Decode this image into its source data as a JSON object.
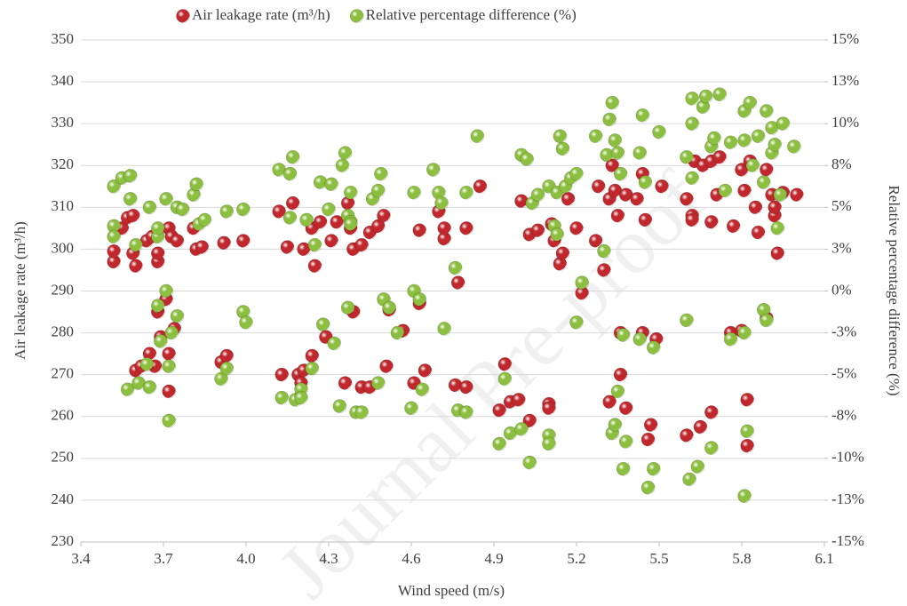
{
  "chart_data": {
    "type": "scatter",
    "watermark": "Journal Pre-proof",
    "x_label": "Wind speed (m/s)",
    "y_label": "Air leakage rate (m³/h)",
    "y2_label": "Relative percentage difference (%)",
    "xlim": [
      3.4,
      6.1
    ],
    "xticks": [
      3.4,
      3.7,
      {
        "value": 4,
        "label": "4.0"
      },
      4.3,
      4.6,
      4.9,
      5.2,
      5.5,
      5.8,
      6.1
    ],
    "ylim": [
      230,
      350
    ],
    "yticks": [
      230,
      240,
      250,
      260,
      270,
      280,
      290,
      300,
      310,
      320,
      330,
      340,
      350
    ],
    "y2lim": [
      -15,
      15
    ],
    "y2ticks": [
      {
        "value": -15,
        "label": "-15%"
      },
      {
        "value": -12.5,
        "label": "-13%"
      },
      {
        "value": -10,
        "label": "-10%"
      },
      {
        "value": -7.5,
        "label": "-8%"
      },
      {
        "value": -5,
        "label": "-5%"
      },
      {
        "value": -2.5,
        "label": "-3%"
      },
      {
        "value": 0,
        "label": "0%"
      },
      {
        "value": 2.5,
        "label": "3%"
      },
      {
        "value": 5,
        "label": "5%"
      },
      {
        "value": 7.5,
        "label": "8%"
      },
      {
        "value": 10,
        "label": "10%"
      },
      {
        "value": 12.5,
        "label": "13%"
      },
      {
        "value": 15,
        "label": "15%"
      }
    ],
    "legend": "top",
    "series": [
      {
        "name": "Air leakage rate (m³/h)",
        "color": "#c0282d",
        "x": [
          3.52,
          3.52,
          3.55,
          3.57,
          3.59,
          3.59,
          3.6,
          3.64,
          3.66,
          3.68,
          3.68,
          3.72,
          3.73,
          3.75,
          3.81,
          3.82,
          3.84,
          3.92,
          3.99,
          3.6,
          3.62,
          3.65,
          3.67,
          3.68,
          3.69,
          3.71,
          3.72,
          3.72,
          3.74,
          3.91,
          3.93,
          4.12,
          4.15,
          4.17,
          4.21,
          4.24,
          4.25,
          4.27,
          4.31,
          4.33,
          4.37,
          4.38,
          4.39,
          4.42,
          4.45,
          4.48,
          4.5,
          4.63,
          4.7,
          4.72,
          4.72,
          4.77,
          4.8,
          4.85,
          4.13,
          4.19,
          4.2,
          4.21,
          4.24,
          4.29,
          4.36,
          4.39,
          4.42,
          4.45,
          4.51,
          4.52,
          4.57,
          4.61,
          4.63,
          4.65,
          4.76,
          4.8,
          5.0,
          5.03,
          5.06,
          5.11,
          5.12,
          5.14,
          5.15,
          5.17,
          5.2,
          5.22,
          5.27,
          5.28,
          5.3,
          5.32,
          5.33,
          5.34,
          5.35,
          5.38,
          5.42,
          5.44,
          5.45,
          5.51,
          5.6,
          5.62,
          5.62,
          5.63,
          5.66,
          5.69,
          5.69,
          5.71,
          5.72,
          5.77,
          5.8,
          5.81,
          5.83,
          5.85,
          5.86,
          5.89,
          5.91,
          5.92,
          5.92,
          5.93,
          5.95,
          6.0,
          4.92,
          4.94,
          4.96,
          4.99,
          5.03,
          5.1,
          5.1,
          5.32,
          5.36,
          5.38,
          5.36,
          5.44,
          5.46,
          5.47,
          5.49,
          5.6,
          5.65,
          5.69,
          5.76,
          5.8,
          5.82,
          5.82,
          5.89
        ],
        "values": [
          297,
          299.5,
          305,
          307.5,
          308,
          299,
          296,
          302,
          303,
          297,
          299,
          305,
          303,
          302,
          305,
          300,
          300.5,
          301.5,
          302,
          271,
          272,
          275,
          272,
          285,
          279,
          288,
          275,
          266,
          281,
          273,
          274.5,
          309,
          300.5,
          311,
          300,
          305,
          296,
          306.5,
          302,
          306.5,
          311,
          305,
          300,
          301,
          304,
          305.5,
          308,
          304.5,
          309,
          302.5,
          305,
          292,
          305,
          315,
          270,
          270,
          268,
          271,
          274.5,
          279,
          268,
          285,
          267,
          267,
          272,
          285.5,
          280.5,
          268,
          287,
          271,
          267.5,
          267,
          311.5,
          303.5,
          304.5,
          306,
          302,
          296.5,
          299,
          312,
          305,
          289.5,
          302,
          315,
          295,
          312,
          320,
          314,
          308,
          313,
          312,
          318,
          307,
          315,
          312,
          308,
          307,
          321,
          320,
          321,
          306.5,
          313,
          322,
          305.5,
          319,
          314,
          321,
          310,
          304,
          319,
          313,
          308,
          310,
          299,
          313.5,
          313,
          261.5,
          272.5,
          263.5,
          264,
          259,
          263,
          262,
          263.5,
          270,
          262,
          280,
          280,
          254.5,
          258,
          278.5,
          255.5,
          257.5,
          261,
          280,
          280.5,
          253,
          264,
          283.5
        ]
      },
      {
        "name": "Relative percentage difference (%)",
        "color": "#8cbf3f",
        "axis": "y2",
        "x": [
          3.52,
          3.52,
          3.52,
          3.55,
          3.58,
          3.58,
          3.6,
          3.65,
          3.68,
          3.68,
          3.71,
          3.75,
          3.77,
          3.81,
          3.82,
          3.83,
          3.85,
          3.93,
          3.99,
          3.57,
          3.61,
          3.64,
          3.65,
          3.68,
          3.69,
          3.71,
          3.72,
          3.72,
          3.73,
          3.75,
          3.91,
          3.93,
          3.99,
          4.0,
          4.12,
          4.16,
          4.16,
          4.17,
          4.22,
          4.25,
          4.27,
          4.3,
          4.31,
          4.35,
          4.36,
          4.37,
          4.38,
          4.38,
          4.38,
          4.46,
          4.48,
          4.49,
          4.61,
          4.68,
          4.7,
          4.71,
          4.76,
          4.8,
          4.84,
          4.13,
          4.18,
          4.2,
          4.2,
          4.24,
          4.28,
          4.32,
          4.34,
          4.37,
          4.4,
          4.42,
          4.48,
          4.5,
          4.52,
          4.55,
          4.6,
          4.61,
          4.63,
          4.64,
          4.72,
          4.77,
          4.8,
          5.0,
          5.02,
          5.04,
          5.06,
          5.1,
          5.13,
          5.12,
          5.13,
          5.14,
          5.15,
          5.16,
          5.18,
          5.2,
          5.22,
          5.27,
          5.3,
          5.31,
          5.32,
          5.33,
          5.34,
          5.35,
          5.36,
          5.43,
          5.44,
          5.45,
          5.5,
          5.6,
          5.62,
          5.62,
          5.62,
          5.66,
          5.67,
          5.69,
          5.7,
          5.72,
          5.74,
          5.76,
          5.81,
          5.81,
          5.83,
          5.84,
          5.86,
          5.88,
          5.89,
          5.91,
          5.91,
          5.92,
          5.93,
          5.94,
          5.95,
          5.99,
          4.92,
          4.94,
          4.96,
          5.0,
          5.03,
          5.1,
          5.1,
          5.2,
          5.33,
          5.34,
          5.35,
          5.37,
          5.38,
          5.37,
          5.43,
          5.46,
          5.48,
          5.48,
          5.6,
          5.61,
          5.64,
          5.69,
          5.76,
          5.81,
          5.81,
          5.82,
          5.88,
          5.89
        ],
        "values": [
          6.25,
          3.88,
          3.25,
          6.75,
          5.5,
          6.88,
          2.75,
          5,
          3.25,
          3.75,
          5.5,
          5,
          4.88,
          5.75,
          6.38,
          4,
          4.25,
          4.75,
          4.88,
          -5.88,
          -5.5,
          -4.38,
          -5.75,
          -0.88,
          -3,
          0,
          -4.5,
          -7.75,
          -2.5,
          -1.5,
          -5.25,
          -4.63,
          -1.25,
          -1.88,
          7.25,
          4.38,
          7,
          8,
          4.25,
          2.75,
          6.5,
          4.88,
          6.38,
          7.5,
          8.25,
          4.5,
          4.13,
          5.88,
          4,
          5.5,
          6,
          7,
          5.88,
          7.25,
          5.88,
          5.25,
          1.38,
          5.88,
          9.25,
          -6.38,
          -6.5,
          -5.88,
          -6.38,
          -4.63,
          -2,
          -3.13,
          -6.88,
          -1,
          -7.25,
          -7.25,
          -5.5,
          -0.5,
          -1,
          -2.5,
          -7,
          0,
          -0.5,
          -5.88,
          -2.25,
          -7.13,
          -7.25,
          8.13,
          7.88,
          5.25,
          5.75,
          6.25,
          5.88,
          3.88,
          3.38,
          9.25,
          8.5,
          6.25,
          6.75,
          7,
          0.5,
          9.25,
          2.38,
          8.13,
          10.25,
          11.25,
          9,
          8.25,
          7,
          8.25,
          10.5,
          6.5,
          9.5,
          8,
          11.5,
          10,
          6.75,
          11,
          11.63,
          8.63,
          9.13,
          11.75,
          6,
          8.88,
          9,
          10.75,
          11.25,
          7.5,
          9.25,
          6.5,
          10.75,
          8.25,
          9.75,
          8.75,
          3.75,
          5.75,
          10,
          8.63,
          -9.13,
          -5.25,
          -8.5,
          -8.25,
          -10.25,
          -8.63,
          -9.13,
          -1.88,
          -8.5,
          -8,
          -6,
          -10.63,
          -9,
          -2.63,
          -2.88,
          -11.75,
          -10.63,
          -3.38,
          -1.75,
          -11.25,
          -10.5,
          -9.38,
          -2.88,
          -2.5,
          -12.25,
          -8.38,
          -1.13,
          -1.75
        ]
      }
    ]
  }
}
